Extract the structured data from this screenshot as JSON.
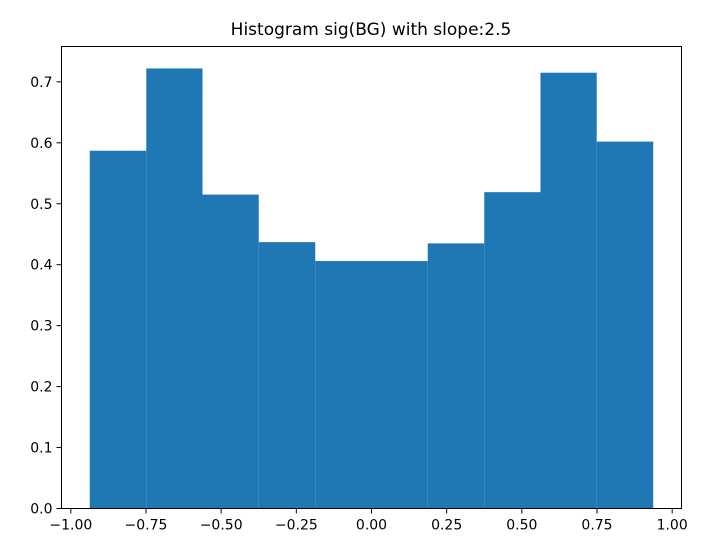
{
  "chart_data": {
    "type": "bar",
    "title": "Histogram sig(BG) with slope:2.5",
    "xlabel": "",
    "ylabel": "",
    "xlim": [
      -1.031,
      1.031
    ],
    "ylim": [
      0.0,
      0.758
    ],
    "bins": [
      {
        "x0": -0.937,
        "x1": -0.749,
        "value": 0.587
      },
      {
        "x0": -0.749,
        "x1": -0.562,
        "value": 0.722
      },
      {
        "x0": -0.562,
        "x1": -0.375,
        "value": 0.515
      },
      {
        "x0": -0.375,
        "x1": -0.187,
        "value": 0.437
      },
      {
        "x0": -0.187,
        "x1": 0.0,
        "value": 0.406
      },
      {
        "x0": 0.0,
        "x1": 0.187,
        "value": 0.406
      },
      {
        "x0": 0.187,
        "x1": 0.375,
        "value": 0.435
      },
      {
        "x0": 0.375,
        "x1": 0.562,
        "value": 0.519
      },
      {
        "x0": 0.562,
        "x1": 0.749,
        "value": 0.715
      },
      {
        "x0": 0.749,
        "x1": 0.937,
        "value": 0.602
      }
    ],
    "bar_color": "#1f77b4",
    "x_ticks": [
      {
        "value": -1.0,
        "label": "−1.00"
      },
      {
        "value": -0.75,
        "label": "−0.75"
      },
      {
        "value": -0.5,
        "label": "−0.50"
      },
      {
        "value": -0.25,
        "label": "−0.25"
      },
      {
        "value": 0.0,
        "label": "0.00"
      },
      {
        "value": 0.25,
        "label": "0.25"
      },
      {
        "value": 0.5,
        "label": "0.50"
      },
      {
        "value": 0.75,
        "label": "0.75"
      },
      {
        "value": 1.0,
        "label": "1.00"
      }
    ],
    "y_ticks": [
      {
        "value": 0.0,
        "label": "0.0"
      },
      {
        "value": 0.1,
        "label": "0.1"
      },
      {
        "value": 0.2,
        "label": "0.2"
      },
      {
        "value": 0.3,
        "label": "0.3"
      },
      {
        "value": 0.4,
        "label": "0.4"
      },
      {
        "value": 0.5,
        "label": "0.5"
      },
      {
        "value": 0.6,
        "label": "0.6"
      },
      {
        "value": 0.7,
        "label": "0.7"
      }
    ],
    "grid": false,
    "legend": "none"
  }
}
